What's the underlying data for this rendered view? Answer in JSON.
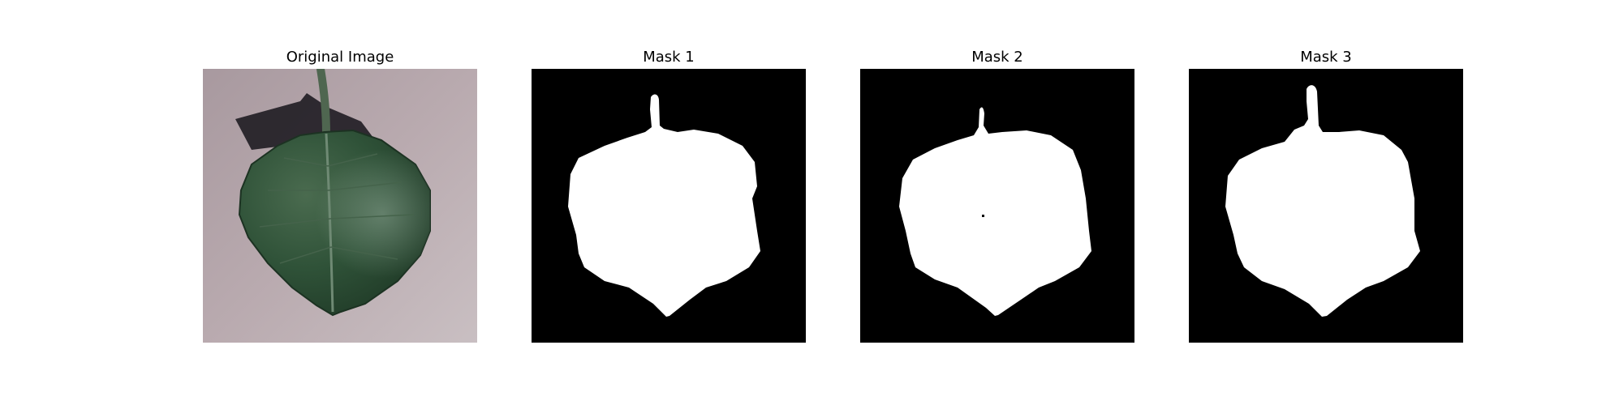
{
  "figure": {
    "panels": [
      {
        "title": "Original Image",
        "kind": "photo",
        "subject": "leaf-photo"
      },
      {
        "title": "Mask 1",
        "kind": "mask",
        "subject": "leaf-mask"
      },
      {
        "title": "Mask 2",
        "kind": "mask",
        "subject": "leaf-mask"
      },
      {
        "title": "Mask 3",
        "kind": "mask",
        "subject": "leaf-mask"
      }
    ]
  },
  "colors": {
    "background": "#ffffff",
    "mask_background": "#000000",
    "mask_foreground": "#ffffff",
    "photo_background": "#b8a9ae",
    "leaf": "#2f5238",
    "leaf_shadow": "#1f1c22",
    "stem": "#4f6650"
  }
}
